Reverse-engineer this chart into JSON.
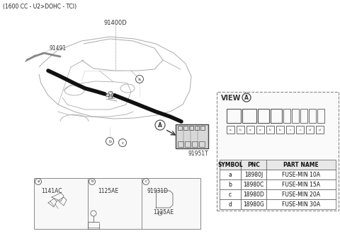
{
  "title": "(1600 CC - U2>DOHC - TCI)",
  "bg_color": "#ffffff",
  "label_91400D": "91400D",
  "label_91491": "91491",
  "label_91951T": "91951T",
  "view_label": "VIEW",
  "table_headers": [
    "SYMBOL",
    "PNC",
    "PART NAME"
  ],
  "table_rows": [
    [
      "a",
      "18980J",
      "FUSE-MIN 10A"
    ],
    [
      "b",
      "18980C",
      "FUSE-MIN 15A"
    ],
    [
      "c",
      "18980D",
      "FUSE-MIN 20A"
    ],
    [
      "d",
      "18980G",
      "FUSE-MIN 30A"
    ]
  ],
  "bottom_labels_a": "1141AC",
  "bottom_labels_b": "1125AE",
  "bottom_labels_c1": "91931D",
  "bottom_labels_c2": "1125AE"
}
